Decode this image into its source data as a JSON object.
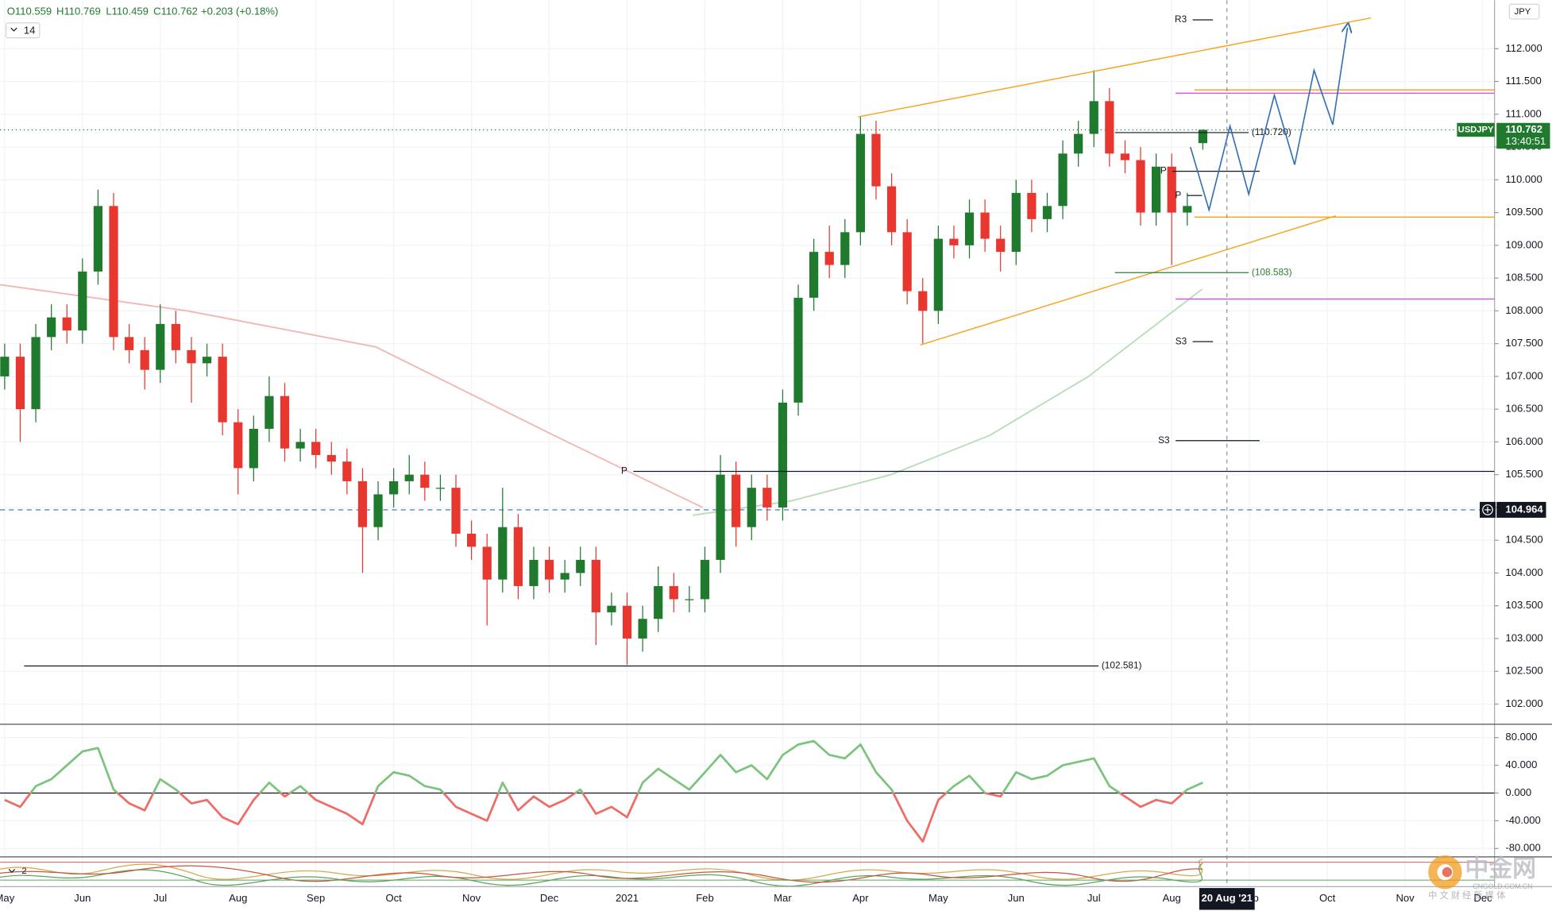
{
  "header": {
    "ohlc": [
      "O110.559",
      "H110.769",
      "L110.459",
      "C110.762",
      "+0.203 (+0.18%)"
    ],
    "indicator_length": 14,
    "currency": "JPY",
    "lower_pane_label": 2
  },
  "watermark": {
    "name": "中金网",
    "site": "CNGOLD.COM.CN",
    "tagline": "中 文 财 经 新 媒 体"
  },
  "chart_data": [
    {
      "type": "candlestick",
      "symbol": "USDJPY",
      "x": [
        0,
        0.2,
        0.4,
        0.6,
        0.8,
        1,
        1.2,
        1.4,
        1.6,
        1.8,
        2,
        2.2,
        2.4,
        2.6,
        2.8,
        3,
        3.2,
        3.4,
        3.6,
        3.8,
        4,
        4.2,
        4.4,
        4.6,
        4.8,
        5,
        5.2,
        5.4,
        5.6,
        5.8,
        6,
        6.2,
        6.4,
        6.6,
        6.8,
        7,
        7.2,
        7.4,
        7.6,
        7.8,
        8,
        8.2,
        8.4,
        8.6,
        8.8,
        9,
        9.2,
        9.4,
        9.6,
        9.8,
        10,
        10.2,
        10.4,
        10.6,
        10.8,
        11,
        11.2,
        11.4,
        11.6,
        11.8,
        12,
        12.2,
        12.4,
        12.6,
        12.8,
        13,
        13.2,
        13.4,
        13.6,
        13.8,
        14,
        14.2,
        14.4,
        14.6,
        14.8,
        15,
        15.2,
        15.4
      ],
      "open": [
        107.0,
        107.3,
        106.5,
        107.6,
        107.9,
        107.7,
        108.6,
        109.6,
        107.6,
        107.4,
        107.1,
        107.8,
        107.4,
        107.2,
        107.3,
        106.3,
        105.6,
        106.2,
        106.7,
        105.9,
        106.0,
        105.8,
        105.7,
        105.4,
        104.7,
        105.2,
        105.4,
        105.5,
        105.3,
        105.3,
        104.6,
        104.4,
        103.9,
        104.7,
        103.8,
        104.2,
        103.9,
        104.0,
        104.2,
        103.4,
        103.5,
        103.0,
        103.3,
        103.8,
        103.6,
        103.6,
        104.2,
        105.5,
        104.7,
        105.3,
        105.0,
        106.6,
        108.2,
        108.9,
        108.7,
        109.2,
        110.7,
        109.9,
        109.2,
        108.3,
        108.0,
        109.1,
        109.0,
        109.5,
        109.1,
        108.9,
        109.8,
        109.4,
        109.6,
        110.4,
        110.7,
        111.2,
        110.4,
        110.3,
        109.5,
        110.2,
        109.5,
        110.559
      ],
      "high": [
        107.5,
        107.5,
        107.8,
        108.1,
        108.1,
        108.8,
        109.85,
        109.8,
        107.8,
        107.6,
        108.1,
        108.0,
        107.6,
        107.5,
        107.5,
        106.5,
        106.4,
        107.0,
        106.9,
        106.2,
        106.2,
        106.0,
        105.9,
        105.6,
        105.4,
        105.6,
        105.8,
        105.7,
        105.5,
        105.5,
        104.8,
        104.6,
        105.3,
        104.9,
        104.4,
        104.4,
        104.2,
        104.4,
        104.4,
        103.7,
        103.7,
        103.5,
        104.1,
        104.0,
        103.8,
        104.4,
        105.8,
        105.7,
        105.5,
        105.5,
        106.8,
        108.4,
        109.1,
        109.3,
        109.4,
        110.97,
        110.9,
        110.1,
        109.4,
        108.5,
        109.3,
        109.3,
        109.7,
        109.7,
        109.3,
        110.0,
        110.0,
        109.8,
        110.6,
        110.9,
        111.67,
        111.4,
        110.6,
        110.5,
        110.4,
        110.4,
        109.8,
        110.769
      ],
      "low": [
        106.8,
        106.0,
        106.3,
        107.4,
        107.5,
        107.5,
        108.4,
        107.4,
        107.2,
        106.8,
        106.9,
        107.2,
        106.6,
        107.0,
        106.1,
        105.2,
        105.4,
        106.0,
        105.7,
        105.7,
        105.6,
        105.5,
        105.2,
        104.0,
        104.5,
        105.0,
        105.2,
        105.1,
        105.1,
        104.4,
        104.2,
        103.2,
        103.7,
        103.6,
        103.6,
        103.7,
        103.7,
        103.8,
        102.9,
        103.2,
        102.6,
        102.8,
        103.1,
        103.4,
        103.4,
        103.4,
        104.0,
        104.4,
        104.5,
        104.8,
        104.8,
        106.4,
        108.0,
        108.5,
        108.5,
        109.0,
        109.7,
        109.0,
        108.1,
        107.5,
        107.8,
        108.8,
        108.8,
        108.9,
        108.6,
        108.7,
        109.2,
        109.2,
        109.4,
        110.2,
        110.5,
        110.2,
        110.1,
        109.3,
        109.3,
        108.7,
        109.3,
        110.459
      ],
      "close": [
        107.3,
        106.5,
        107.6,
        107.9,
        107.7,
        108.6,
        109.6,
        107.6,
        107.4,
        107.1,
        107.8,
        107.4,
        107.2,
        107.3,
        106.3,
        105.6,
        106.2,
        106.7,
        105.9,
        106.0,
        105.8,
        105.7,
        105.4,
        104.7,
        105.2,
        105.4,
        105.5,
        105.3,
        105.3,
        104.6,
        104.4,
        103.9,
        104.7,
        103.8,
        104.2,
        103.9,
        104.0,
        104.2,
        103.4,
        103.5,
        103.0,
        103.3,
        103.8,
        103.6,
        103.6,
        104.2,
        105.5,
        104.7,
        105.3,
        105.0,
        106.6,
        108.2,
        108.9,
        108.7,
        109.2,
        110.7,
        109.9,
        109.2,
        108.3,
        108.0,
        109.1,
        109.0,
        109.5,
        109.1,
        108.9,
        109.8,
        109.4,
        109.6,
        110.4,
        110.7,
        111.2,
        110.4,
        110.3,
        109.5,
        110.2,
        109.5,
        109.6,
        110.762
      ],
      "up_color": "#1f7a2e",
      "down_color": "#e8372f",
      "xlim": [
        -0.06,
        19.15
      ],
      "xticks": [
        {
          "value": 0,
          "label": "May"
        },
        {
          "value": 1,
          "label": "Jun"
        },
        {
          "value": 2,
          "label": "Jul"
        },
        {
          "value": 3,
          "label": "Aug"
        },
        {
          "value": 4,
          "label": "Sep"
        },
        {
          "value": 5,
          "label": "Oct"
        },
        {
          "value": 6,
          "label": "Nov"
        },
        {
          "value": 7,
          "label": "Dec"
        },
        {
          "value": 8,
          "label": "2021"
        },
        {
          "value": 9,
          "label": "Feb"
        },
        {
          "value": 10,
          "label": "Mar"
        },
        {
          "value": 11,
          "label": "Apr"
        },
        {
          "value": 12,
          "label": "May"
        },
        {
          "value": 13,
          "label": "Jun"
        },
        {
          "value": 14,
          "label": "Jul"
        },
        {
          "value": 15,
          "label": "Aug"
        },
        {
          "value": 16,
          "label": "Sep"
        },
        {
          "value": 17,
          "label": "Oct"
        },
        {
          "value": 18,
          "label": "Nov"
        },
        {
          "value": 19,
          "label": "Dec"
        }
      ],
      "ylim": [
        101.7,
        112.74
      ],
      "yticks": [
        {
          "value": 102,
          "label": "102.000"
        },
        {
          "value": 102.5,
          "label": "102.500"
        },
        {
          "value": 103,
          "label": "103.000"
        },
        {
          "value": 103.5,
          "label": "103.500"
        },
        {
          "value": 104,
          "label": "104.000"
        },
        {
          "value": 104.5,
          "label": "104.500"
        },
        {
          "value": 105,
          "label": "105.000"
        },
        {
          "value": 105.5,
          "label": "105.500"
        },
        {
          "value": 106,
          "label": "106.000"
        },
        {
          "value": 106.5,
          "label": "106.500"
        },
        {
          "value": 107,
          "label": "107.000"
        },
        {
          "value": 107.5,
          "label": "107.500"
        },
        {
          "value": 108,
          "label": "108.000"
        },
        {
          "value": 108.5,
          "label": "108.500"
        },
        {
          "value": 109,
          "label": "109.000"
        },
        {
          "value": 109.5,
          "label": "109.500"
        },
        {
          "value": 110,
          "label": "110.000"
        },
        {
          "value": 110.5,
          "label": "110.500"
        },
        {
          "value": 111,
          "label": "111.000"
        },
        {
          "value": 111.5,
          "label": "111.500"
        },
        {
          "value": 112,
          "label": "112.000"
        }
      ],
      "grid": true,
      "last_price": 110.762,
      "last_color": "#1f7a2e",
      "countdown": "13:40:51",
      "crosshair": {
        "x": 15.71,
        "price": 104.964,
        "date_label": "20 Aug '21"
      },
      "overlays": [
        {
          "x": [
            -0.06,
            2.35,
            4.77,
            7.06,
            8.97
          ],
          "values": [
            108.4,
            108.0,
            107.45,
            106.1,
            105.0
          ],
          "color": "#f4b6b2"
        },
        {
          "x": [
            8.84,
            10.11,
            11.39,
            12.66,
            13.93,
            15.39
          ],
          "values": [
            104.88,
            105.1,
            105.5,
            106.1,
            107.0,
            108.33
          ],
          "color": "#b9dcb9"
        }
      ],
      "levels": [
        {
          "label": "R3",
          "value": 112.44,
          "x": [
            15.27,
            15.53
          ],
          "side": "left",
          "color": "#131722"
        },
        {
          "label": "S3",
          "value": 107.53,
          "x": [
            15.27,
            15.53
          ],
          "side": "left",
          "color": "#131722"
        },
        {
          "label": "S3",
          "value": 106.02,
          "x": [
            15.05,
            16.13
          ],
          "side": "left",
          "color": "#131722"
        },
        {
          "label": "P",
          "value": 105.55,
          "x": [
            8.08,
            19.15
          ],
          "side": "left",
          "color": "#131722"
        },
        {
          "label": "P",
          "value": 110.13,
          "x": [
            15.01,
            16.13
          ],
          "side": "left",
          "color": "#131722"
        },
        {
          "label": "P",
          "value": 109.76,
          "x": [
            15.2,
            15.39
          ],
          "side": "left",
          "color": "#131722"
        },
        {
          "label": "(110.720)",
          "value": 110.72,
          "x": [
            14.27,
            15.99
          ],
          "side": "right",
          "color": "#131722"
        },
        {
          "label": "(108.583)",
          "value": 108.583,
          "x": [
            14.27,
            15.99
          ],
          "side": "right",
          "color": "#2e7d32"
        },
        {
          "label": "(102.581)",
          "value": 102.581,
          "x": [
            0.25,
            14.06
          ],
          "side": "right",
          "color": "#131722"
        }
      ],
      "lines": [
        {
          "points": [
            [
              10.97,
              110.96
            ],
            [
              17.56,
              112.47
            ]
          ],
          "color": "#f5a623"
        },
        {
          "points": [
            [
              11.77,
              107.48
            ],
            [
              17.11,
              109.45
            ]
          ],
          "color": "#f5a623"
        },
        {
          "points": [
            [
              15.29,
              111.37
            ],
            [
              19.15,
              111.37
            ]
          ],
          "color": "#f5a623"
        },
        {
          "points": [
            [
              15.29,
              109.43
            ],
            [
              19.15,
              109.43
            ]
          ],
          "color": "#f5a623"
        },
        {
          "points": [
            [
              15.05,
              111.32
            ],
            [
              19.15,
              111.32
            ]
          ],
          "color": "#d65ad6"
        },
        {
          "points": [
            [
              15.05,
              108.18
            ],
            [
              19.15,
              108.18
            ]
          ],
          "color": "#d65ad6"
        }
      ],
      "projection": {
        "x": [
          15.24,
          15.48,
          15.75,
          15.99,
          16.32,
          16.58,
          16.83,
          17.07,
          17.26
        ],
        "values": [
          110.5,
          109.54,
          110.82,
          109.78,
          111.29,
          110.23,
          111.67,
          110.84,
          112.32
        ],
        "color": "#2f6fb5"
      }
    },
    {
      "type": "line",
      "values": [
        -10,
        -20,
        10,
        20,
        40,
        60,
        65,
        5,
        -15,
        -25,
        20,
        5,
        -15,
        -10,
        -35,
        -45,
        -10,
        15,
        -5,
        10,
        -10,
        -20,
        -30,
        -45,
        10,
        30,
        25,
        10,
        5,
        -20,
        -30,
        -40,
        15,
        -25,
        -5,
        -20,
        -10,
        5,
        -30,
        -20,
        -35,
        15,
        35,
        20,
        5,
        30,
        55,
        30,
        40,
        20,
        55,
        70,
        75,
        55,
        50,
        70,
        30,
        5,
        -40,
        -70,
        -10,
        10,
        25,
        0,
        -5,
        30,
        20,
        25,
        40,
        45,
        50,
        10,
        -5,
        -20,
        -10,
        -15,
        5,
        15
      ],
      "pos_color": "#7cc47e",
      "neg_color": "#ef6b66",
      "ylim": [
        -91.4,
        97.1
      ],
      "yticks": [
        {
          "value": 80,
          "label": "80.000"
        },
        {
          "value": 40,
          "label": "40.000"
        },
        {
          "value": 0,
          "label": "0.000"
        },
        {
          "value": -40,
          "label": "-40.000"
        },
        {
          "value": -80,
          "label": "-80.000"
        }
      ],
      "baseline": 0
    }
  ]
}
